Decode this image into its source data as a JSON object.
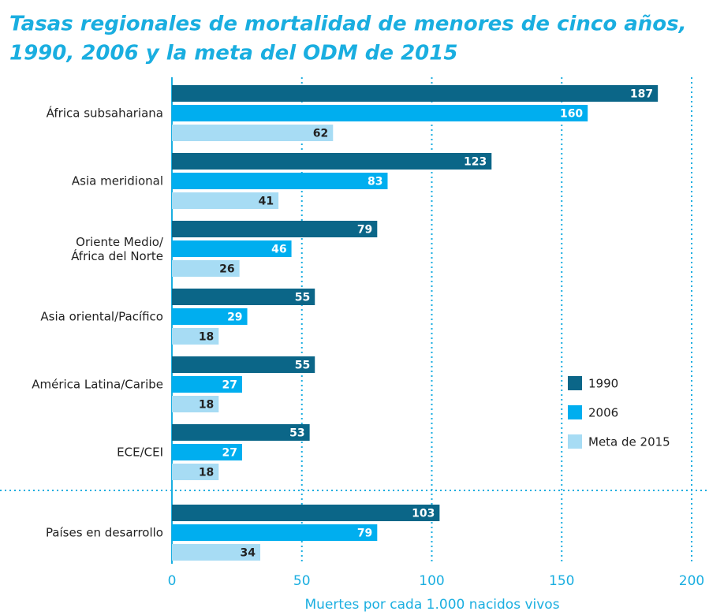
{
  "chart_data": {
    "type": "barh",
    "title": [
      "Tasas regionales de mortalidad de menores de cinco años,",
      "1990, 2006 y la meta del ODM de 2015"
    ],
    "categories": [
      "África subsahariana",
      "Asia meridional",
      "Oriente Medio/\nÁfrica del Norte",
      "Asia oriental/Pacífico",
      "América Latina/Caribe",
      "ECE/CEI",
      "Países en desarrollo"
    ],
    "series": [
      {
        "name": "1990",
        "color": "#0b6688",
        "values": [
          187,
          123,
          79,
          55,
          55,
          53,
          103
        ]
      },
      {
        "name": "2006",
        "color": "#00aeef",
        "values": [
          160,
          83,
          46,
          29,
          27,
          27,
          79
        ]
      },
      {
        "name": "Meta de 2015",
        "color": "#a7dcf4",
        "values": [
          62,
          41,
          26,
          18,
          18,
          18,
          34
        ]
      }
    ],
    "xlim": [
      0,
      200
    ],
    "xticks": [
      0,
      50,
      100,
      150,
      200
    ],
    "xlabel": "Muertes por cada 1.000 nacidos vivos",
    "grid": true,
    "legend": "right"
  }
}
